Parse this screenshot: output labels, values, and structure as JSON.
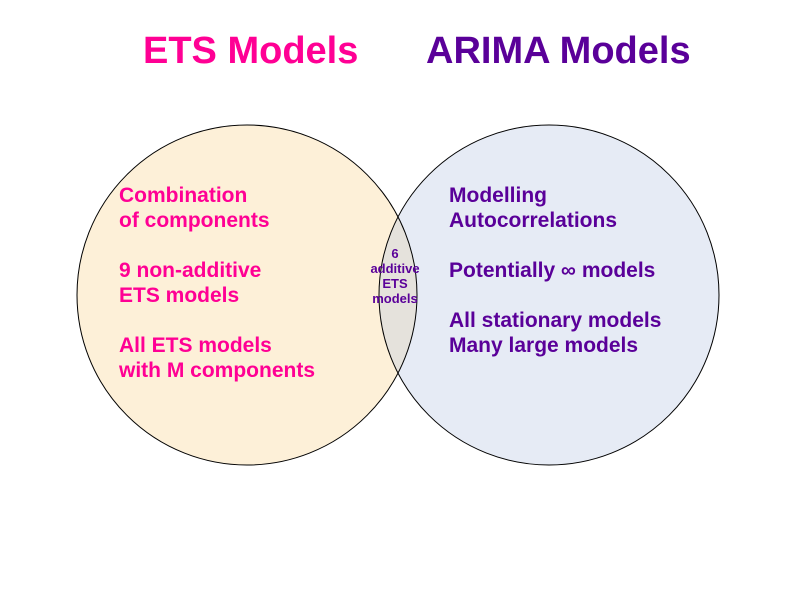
{
  "titles": {
    "ets": "ETS Models",
    "arima": "ARIMA Models"
  },
  "ets_region": {
    "blocks": [
      [
        "Combination",
        "of components"
      ],
      [
        "9 non-additive",
        "ETS models"
      ],
      [
        "All ETS models",
        "with M components"
      ]
    ]
  },
  "arima_region": {
    "blocks": [
      [
        "Modelling",
        "Autocorrelations"
      ],
      [
        "Potentially ∞ models"
      ],
      [
        "All stationary models",
        "Many large models"
      ]
    ]
  },
  "overlap_region": {
    "lines": [
      "6",
      "additive",
      "ETS",
      "models"
    ]
  },
  "colors": {
    "ets_text": "#ff0094",
    "arima_text": "#5a0099",
    "ets_fill": "#fdf0d8",
    "arima_fill": "#e6ebf5",
    "overlap_fill": "#e5e2dc",
    "stroke": "#000000"
  }
}
